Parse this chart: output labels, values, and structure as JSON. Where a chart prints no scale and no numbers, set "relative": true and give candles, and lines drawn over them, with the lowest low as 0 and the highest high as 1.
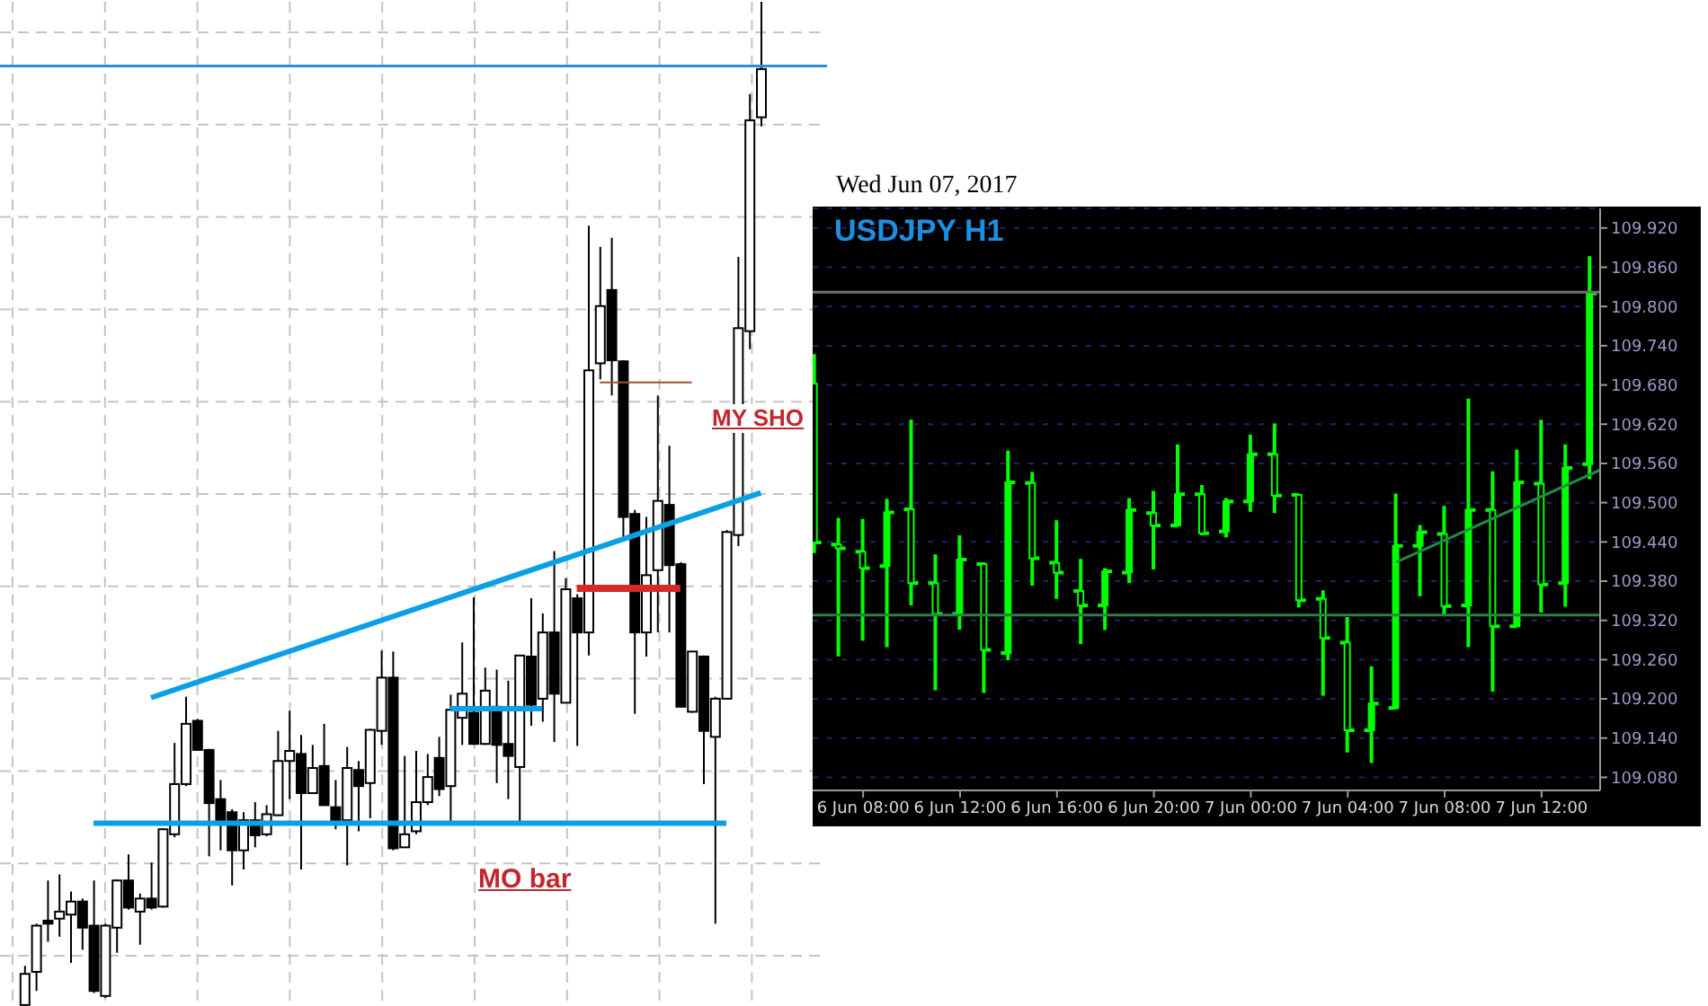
{
  "chart_data": [
    {
      "type": "candlestick",
      "relative": true,
      "grid": true,
      "categories": [
        null,
        null,
        null,
        null,
        null,
        null,
        null,
        null,
        null,
        null,
        null,
        null,
        null,
        null,
        null,
        null,
        null,
        null,
        null,
        null,
        null,
        null,
        null,
        null,
        null,
        null,
        null,
        null,
        null,
        null,
        null,
        null,
        null,
        null,
        null,
        null,
        null,
        null,
        null,
        null,
        null,
        null,
        null,
        null,
        null,
        null,
        null,
        null,
        null,
        null,
        null,
        null,
        null,
        null,
        null,
        null,
        null,
        null,
        null,
        null,
        null,
        null,
        null,
        null,
        null
      ],
      "ohlc": [
        [
          0.001,
          0.04,
          0,
          0.032
        ],
        [
          0.034,
          0.082,
          0.015,
          0.08
        ],
        [
          0.085,
          0.125,
          0.064,
          0.082
        ],
        [
          0.087,
          0.131,
          0.069,
          0.094
        ],
        [
          0.091,
          0.114,
          0.043,
          0.104
        ],
        [
          0.104,
          0.107,
          0.056,
          0.078
        ],
        [
          0.08,
          0.125,
          0.013,
          0.015
        ],
        [
          0.01,
          0.082,
          0.008,
          0.08
        ],
        [
          0.078,
          0.126,
          0.053,
          0.125
        ],
        [
          0.125,
          0.151,
          0.096,
          0.098
        ],
        [
          0.094,
          0.112,
          0.061,
          0.107
        ],
        [
          0.107,
          0.143,
          0.096,
          0.098
        ],
        [
          0.099,
          0.177,
          0.098,
          0.176
        ],
        [
          0.171,
          0.262,
          0.168,
          0.221
        ],
        [
          0.221,
          0.308,
          0.219,
          0.281
        ],
        [
          0.284,
          0.286,
          0.254,
          0.255
        ],
        [
          0.255,
          0.256,
          0.149,
          0.202
        ],
        [
          0.206,
          0.225,
          0.155,
          0.185
        ],
        [
          0.193,
          0.196,
          0.12,
          0.155
        ],
        [
          0.155,
          0.193,
          0.136,
          0.185
        ],
        [
          0.185,
          0.203,
          0.158,
          0.17
        ],
        [
          0.171,
          0.2,
          0.169,
          0.191
        ],
        [
          0.19,
          0.274,
          0.189,
          0.244
        ],
        [
          0.244,
          0.294,
          0.206,
          0.254
        ],
        [
          0.251,
          0.27,
          0.136,
          0.212
        ],
        [
          0.212,
          0.26,
          0.212,
          0.237
        ],
        [
          0.239,
          0.281,
          0.2,
          0.2
        ],
        [
          0.198,
          0.225,
          0.176,
          0.184
        ],
        [
          0.185,
          0.258,
          0.14,
          0.237
        ],
        [
          0.235,
          0.244,
          0.174,
          0.219
        ],
        [
          0.222,
          0.276,
          0.187,
          0.275
        ],
        [
          0.274,
          0.354,
          0.26,
          0.327
        ],
        [
          0.327,
          0.353,
          0.155,
          0.157
        ],
        [
          0.158,
          0.249,
          0.158,
          0.171
        ],
        [
          0.174,
          0.254,
          0.171,
          0.203
        ],
        [
          0.203,
          0.251,
          0.2,
          0.228
        ],
        [
          0.247,
          0.268,
          0.209,
          0.216
        ],
        [
          0.219,
          0.31,
          0.184,
          0.295
        ],
        [
          0.287,
          0.362,
          0.26,
          0.311
        ],
        [
          0.292,
          0.407,
          0.26,
          0.261
        ],
        [
          0.261,
          0.337,
          0.26,
          0.314
        ],
        [
          0.298,
          0.335,
          0.222,
          0.26
        ],
        [
          0.261,
          0.324,
          0.206,
          0.249
        ],
        [
          0.238,
          0.349,
          0.184,
          0.349
        ],
        [
          0.348,
          0.406,
          0.279,
          0.3
        ],
        [
          0.306,
          0.391,
          0.283,
          0.372
        ],
        [
          0.372,
          0.453,
          0.263,
          0.311
        ],
        [
          0.302,
          0.426,
          0.302,
          0.415
        ],
        [
          0.406,
          0.41,
          0.259,
          0.372
        ],
        [
          0.372,
          0.777,
          0.349,
          0.633
        ],
        [
          0.64,
          0.756,
          0.624,
          0.697
        ],
        [
          0.713,
          0.765,
          0.608,
          0.643
        ],
        [
          0.642,
          0.643,
          0.467,
          0.487
        ],
        [
          0.49,
          0.494,
          0.291,
          0.372
        ],
        [
          0.372,
          0.487,
          0.348,
          0.429
        ],
        [
          0.434,
          0.608,
          0.372,
          0.503
        ],
        [
          0.499,
          0.558,
          0.372,
          0.439
        ],
        [
          0.44,
          0.442,
          0.298,
          0.298
        ],
        [
          0.293,
          0.353,
          0.292,
          0.353
        ],
        [
          0.348,
          0.349,
          0.221,
          0.274
        ],
        [
          0.268,
          0.308,
          0.082,
          0.306
        ],
        [
          0.306,
          0.474,
          0.306,
          0.472
        ],
        [
          0.469,
          0.746,
          0.458,
          0.675
        ],
        [
          0.672,
          0.908,
          0.654,
          0.882
        ],
        [
          0.885,
          1,
          0.876,
          0.933
        ]
      ],
      "series": [
        {
          "type": "line",
          "color": "#0ba0e6",
          "values": [
            null,
            null,
            null,
            null,
            null,
            null,
            0.182,
            null,
            null,
            null,
            null,
            null,
            null,
            null,
            null,
            null,
            null,
            null,
            null,
            null,
            null,
            null,
            null,
            null,
            null,
            null,
            null,
            null,
            null,
            null,
            null,
            null,
            null,
            null,
            null,
            null,
            null,
            null,
            null,
            null,
            null,
            null,
            null,
            null,
            null,
            null,
            null,
            null,
            null,
            null,
            null,
            null,
            null,
            null,
            null,
            null,
            null,
            null,
            null,
            null,
            null,
            0.182,
            null,
            null,
            null
          ]
        },
        {
          "type": "line",
          "color": "#0ba0e6",
          "values": [
            null,
            null,
            null,
            null,
            null,
            null,
            null,
            null,
            null,
            null,
            null,
            null,
            null,
            null,
            null,
            null,
            null,
            null,
            null,
            null,
            null,
            null,
            null,
            null,
            null,
            null,
            null,
            null,
            null,
            null,
            null,
            null,
            null,
            null,
            null,
            null,
            null,
            0.296,
            null,
            null,
            null,
            null,
            null,
            null,
            null,
            0.296,
            null,
            null,
            null,
            null,
            null,
            null,
            null,
            null,
            null,
            null,
            null,
            null,
            null,
            null,
            null,
            null,
            null,
            null,
            null
          ]
        },
        {
          "type": "line",
          "color": "#d42a2a",
          "values": [
            null,
            null,
            null,
            null,
            null,
            null,
            null,
            null,
            null,
            null,
            null,
            null,
            null,
            null,
            null,
            null,
            null,
            null,
            null,
            null,
            null,
            null,
            null,
            null,
            null,
            null,
            null,
            null,
            null,
            null,
            null,
            null,
            null,
            null,
            null,
            null,
            null,
            null,
            null,
            null,
            null,
            null,
            null,
            null,
            null,
            null,
            null,
            null,
            0.416,
            null,
            null,
            null,
            null,
            null,
            null,
            null,
            null,
            0.416,
            null,
            null,
            null,
            null,
            null,
            null,
            null
          ]
        },
        {
          "type": "line",
          "color": "#a0522d",
          "values": [
            null,
            null,
            null,
            null,
            null,
            null,
            null,
            null,
            null,
            null,
            null,
            null,
            null,
            null,
            null,
            null,
            null,
            null,
            null,
            null,
            null,
            null,
            null,
            null,
            null,
            null,
            null,
            null,
            null,
            null,
            null,
            null,
            null,
            null,
            null,
            null,
            null,
            null,
            null,
            null,
            null,
            null,
            null,
            null,
            null,
            null,
            null,
            null,
            null,
            null,
            0.621,
            null,
            null,
            null,
            null,
            null,
            null,
            null,
            0.621,
            null,
            null,
            null,
            null,
            null,
            null
          ]
        },
        {
          "type": "line",
          "color": "#0ba0e6",
          "values": [
            null,
            null,
            null,
            null,
            null,
            null,
            null,
            null,
            null,
            null,
            null,
            0.307,
            null,
            null,
            null,
            null,
            null,
            null,
            null,
            null,
            null,
            null,
            null,
            null,
            null,
            null,
            null,
            null,
            null,
            null,
            null,
            null,
            null,
            null,
            null,
            null,
            null,
            null,
            null,
            null,
            null,
            null,
            null,
            null,
            null,
            null,
            null,
            null,
            null,
            null,
            null,
            null,
            null,
            null,
            null,
            null,
            null,
            null,
            null,
            null,
            null,
            null,
            null,
            null,
            0.511
          ]
        }
      ],
      "ref_lines": [
        {
          "axis": "y",
          "value": 0.936,
          "color": "#2b8fdc"
        }
      ],
      "annotations": [
        "MO bar",
        "MY SHO"
      ]
    },
    {
      "type": "candlestick",
      "title": "Wed Jun 07, 2017",
      "color": "#00ff00",
      "grid": "y",
      "x": [
        "2017-06-06T06:00",
        "2017-06-06T07:00",
        "2017-06-06T08:00",
        "2017-06-06T09:00",
        "2017-06-06T10:00",
        "2017-06-06T11:00",
        "2017-06-06T12:00",
        "2017-06-06T13:00",
        "2017-06-06T14:00",
        "2017-06-06T15:00",
        "2017-06-06T16:00",
        "2017-06-06T17:00",
        "2017-06-06T18:00",
        "2017-06-06T19:00",
        "2017-06-06T20:00",
        "2017-06-06T21:00",
        "2017-06-06T22:00",
        "2017-06-06T23:00",
        "2017-06-07T00:00",
        "2017-06-07T01:00",
        "2017-06-07T02:00",
        "2017-06-07T03:00",
        "2017-06-07T04:00",
        "2017-06-07T05:00",
        "2017-06-07T06:00",
        "2017-06-07T07:00",
        "2017-06-07T08:00",
        "2017-06-07T09:00",
        "2017-06-07T10:00",
        "2017-06-07T11:00",
        "2017-06-07T12:00",
        "2017-06-07T13:00",
        "2017-06-07T14:00"
      ],
      "ohlc": [
        [
          109.682,
          109.727,
          109.423,
          109.439
        ],
        [
          109.436,
          109.477,
          109.265,
          109.43
        ],
        [
          109.425,
          109.475,
          109.289,
          109.4
        ],
        [
          109.403,
          109.506,
          109.279,
          109.485
        ],
        [
          109.49,
          109.627,
          109.343,
          109.377
        ],
        [
          109.377,
          109.421,
          109.213,
          109.33
        ],
        [
          109.33,
          109.45,
          109.306,
          109.413
        ],
        [
          109.406,
          109.409,
          109.209,
          109.275
        ],
        [
          109.27,
          109.58,
          109.259,
          109.531
        ],
        [
          109.53,
          109.547,
          109.373,
          109.415
        ],
        [
          109.408,
          109.473,
          109.353,
          109.393
        ],
        [
          109.365,
          109.414,
          109.284,
          109.343
        ],
        [
          109.343,
          109.4,
          109.305,
          109.395
        ],
        [
          109.393,
          109.507,
          109.377,
          109.489
        ],
        [
          109.484,
          109.518,
          109.398,
          109.465
        ],
        [
          109.465,
          109.589,
          109.464,
          109.513
        ],
        [
          109.513,
          109.527,
          109.45,
          109.453
        ],
        [
          109.456,
          109.507,
          109.447,
          109.502
        ],
        [
          109.502,
          109.604,
          109.486,
          109.574
        ],
        [
          109.574,
          109.621,
          109.484,
          109.511
        ],
        [
          109.512,
          109.512,
          109.34,
          109.351
        ],
        [
          109.353,
          109.366,
          109.205,
          109.293
        ],
        [
          109.286,
          109.325,
          109.118,
          109.152
        ],
        [
          109.152,
          109.25,
          109.102,
          109.193
        ],
        [
          109.186,
          109.514,
          109.184,
          109.434
        ],
        [
          109.434,
          109.466,
          109.357,
          109.455
        ],
        [
          109.452,
          109.495,
          109.329,
          109.342
        ],
        [
          109.343,
          109.659,
          109.279,
          109.489
        ],
        [
          109.489,
          109.548,
          109.211,
          109.311
        ],
        [
          109.311,
          109.581,
          109.311,
          109.531
        ],
        [
          109.529,
          109.627,
          109.332,
          109.375
        ],
        [
          109.377,
          109.589,
          109.341,
          109.553
        ],
        [
          109.559,
          109.877,
          109.536,
          109.82
        ]
      ],
      "series": [
        {
          "type": "line",
          "color": "#1f8a45",
          "x": [
            "2017-06-07T06:00",
            "2017-06-07T14:25"
          ],
          "values": [
            109.409,
            109.55
          ]
        }
      ],
      "xlim": [
        "2017-06-06T05:55",
        "2017-06-07T14:25"
      ],
      "xticks": [
        {
          "value": "2017-06-06T08:00",
          "label": "6 Jun 08:00"
        },
        {
          "value": "2017-06-06T12:00",
          "label": "6 Jun 12:00"
        },
        {
          "value": "2017-06-06T16:00",
          "label": "6 Jun 16:00"
        },
        {
          "value": "2017-06-06T20:00",
          "label": "6 Jun 20:00"
        },
        {
          "value": "2017-06-07T00:00",
          "label": "7 Jun 00:00"
        },
        {
          "value": "2017-06-07T04:00",
          "label": "7 Jun 04:00"
        },
        {
          "value": "2017-06-07T08:00",
          "label": "7 Jun 08:00"
        },
        {
          "value": "2017-06-07T12:00",
          "label": "7 Jun 12:00"
        }
      ],
      "ylim": [
        109.06,
        109.95
      ],
      "yticks": [
        {
          "value": 109.08,
          "label": "109.080"
        },
        {
          "value": 109.14,
          "label": "109.140"
        },
        {
          "value": 109.2,
          "label": "109.200"
        },
        {
          "value": 109.26,
          "label": "109.260"
        },
        {
          "value": 109.32,
          "label": "109.320"
        },
        {
          "value": 109.38,
          "label": "109.380"
        },
        {
          "value": 109.44,
          "label": "109.440"
        },
        {
          "value": 109.5,
          "label": "109.500"
        },
        {
          "value": 109.56,
          "label": "109.560"
        },
        {
          "value": 109.62,
          "label": "109.620"
        },
        {
          "value": 109.68,
          "label": "109.680"
        },
        {
          "value": 109.74,
          "label": "109.740"
        },
        {
          "value": 109.8,
          "label": "109.800"
        },
        {
          "value": 109.86,
          "label": "109.860"
        },
        {
          "value": 109.92,
          "label": "109.920"
        }
      ],
      "ref_lines": [
        {
          "axis": "y",
          "value": 109.822,
          "color": "#707070"
        },
        {
          "axis": "y",
          "value": 109.328,
          "color": "#2e7d4f"
        }
      ],
      "annotations": [
        "USDJPY H1"
      ]
    }
  ]
}
